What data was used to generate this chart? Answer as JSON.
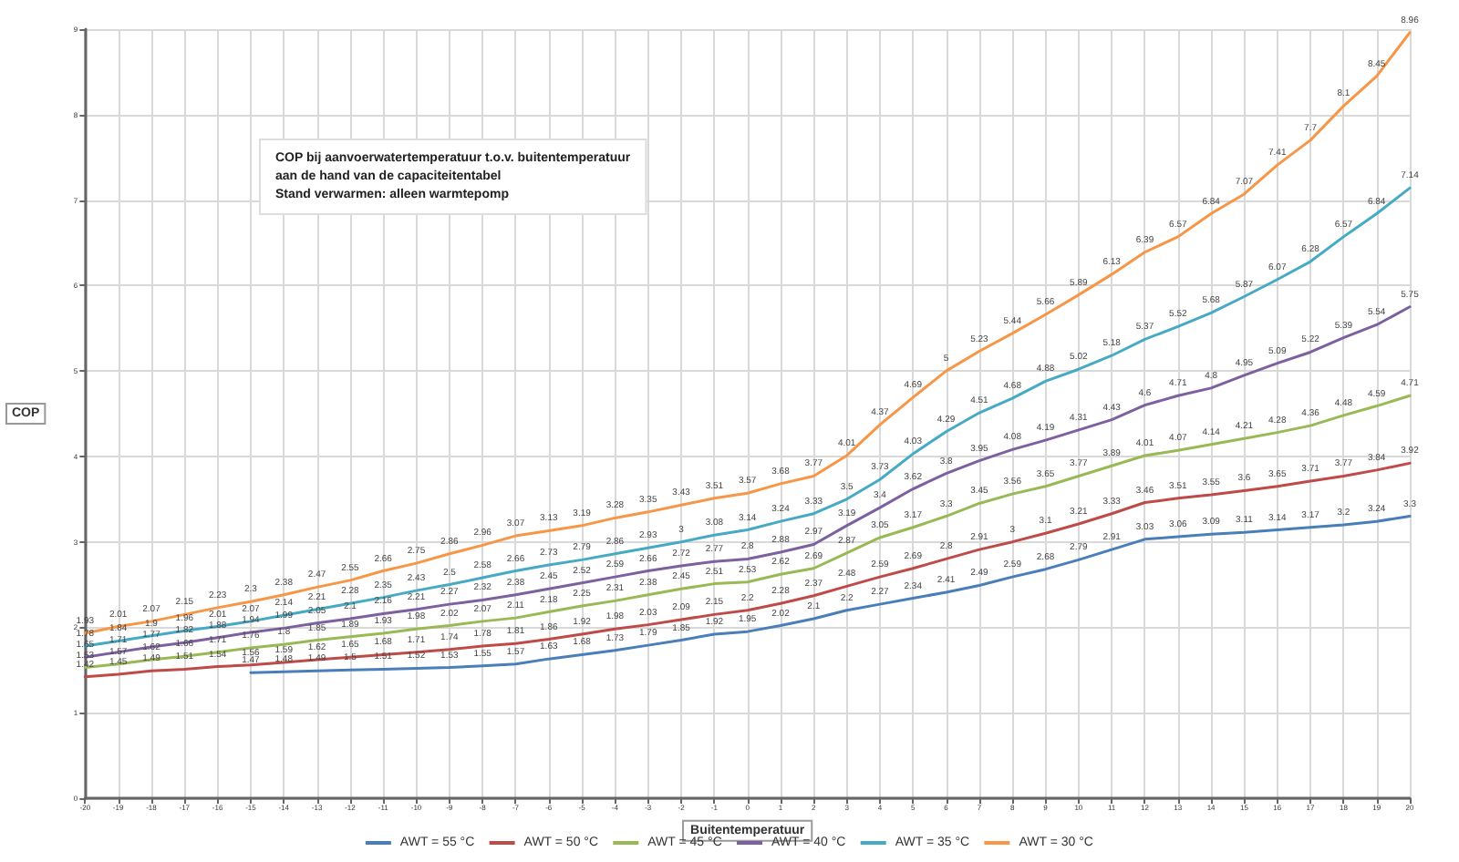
{
  "chart_data": {
    "type": "line",
    "xlabel": "Buitentemperatuur",
    "ylabel": "COP",
    "annotations": [
      "COP bij aanvoerwatertemperatuur t.o.v. buitentemperatuur",
      "aan de hand van de capaciteitentabel",
      "Stand verwarmen: alleen warmtepomp"
    ],
    "x": [
      -20,
      -19,
      -18,
      -17,
      -16,
      -15,
      -14,
      -13,
      -12,
      -11,
      -10,
      -9,
      -8,
      -7,
      -6,
      -5,
      -4,
      -3,
      -2,
      -1,
      0,
      1,
      2,
      3,
      4,
      5,
      6,
      7,
      8,
      9,
      10,
      11,
      12,
      13,
      14,
      15,
      16,
      17,
      18,
      19,
      20
    ],
    "series": [
      {
        "name": "AWT = 55 °C",
        "color": "#4a7ebb",
        "values": [
          null,
          null,
          null,
          null,
          null,
          1.47,
          1.48,
          1.49,
          1.5,
          1.51,
          1.52,
          1.53,
          1.55,
          1.57,
          1.63,
          1.68,
          1.73,
          1.79,
          1.85,
          1.92,
          1.95,
          2.02,
          2.1,
          2.2,
          2.27,
          2.34,
          2.41,
          2.49,
          2.59,
          2.68,
          2.79,
          2.91,
          3.03,
          3.06,
          3.09,
          3.11,
          3.14,
          3.17,
          3.2,
          3.24,
          3.3
        ]
      },
      {
        "name": "AWT = 50 °C",
        "color": "#be4b48",
        "values": [
          1.42,
          1.45,
          1.49,
          1.51,
          1.54,
          1.56,
          1.59,
          1.62,
          1.65,
          1.68,
          1.71,
          1.74,
          1.78,
          1.81,
          1.86,
          1.92,
          1.98,
          2.03,
          2.09,
          2.15,
          2.2,
          2.28,
          2.37,
          2.48,
          2.59,
          2.69,
          2.8,
          2.91,
          3.0,
          3.1,
          3.21,
          3.33,
          3.46,
          3.51,
          3.55,
          3.6,
          3.65,
          3.71,
          3.77,
          3.84,
          3.92
        ]
      },
      {
        "name": "AWT = 45 °C",
        "color": "#98b954",
        "values": [
          1.53,
          1.57,
          1.62,
          1.66,
          1.71,
          1.76,
          1.8,
          1.85,
          1.89,
          1.93,
          1.98,
          2.02,
          2.07,
          2.11,
          2.18,
          2.25,
          2.31,
          2.38,
          2.45,
          2.51,
          2.53,
          2.62,
          2.69,
          2.87,
          3.05,
          3.17,
          3.3,
          3.45,
          3.56,
          3.65,
          3.77,
          3.89,
          4.01,
          4.07,
          4.14,
          4.21,
          4.28,
          4.36,
          4.48,
          4.59,
          4.71
        ]
      },
      {
        "name": "AWT = 40 °C",
        "color": "#7d60a0",
        "values": [
          1.65,
          1.71,
          1.77,
          1.82,
          1.88,
          1.94,
          1.99,
          2.05,
          2.1,
          2.16,
          2.21,
          2.27,
          2.32,
          2.38,
          2.45,
          2.52,
          2.59,
          2.66,
          2.72,
          2.77,
          2.8,
          2.88,
          2.97,
          3.19,
          3.4,
          3.62,
          3.8,
          3.95,
          4.08,
          4.19,
          4.31,
          4.43,
          4.6,
          4.71,
          4.8,
          4.95,
          5.09,
          5.22,
          5.39,
          5.54,
          5.75
        ]
      },
      {
        "name": "AWT = 35 °C",
        "color": "#46aac5",
        "values": [
          1.78,
          1.84,
          1.9,
          1.96,
          2.01,
          2.07,
          2.14,
          2.21,
          2.28,
          2.35,
          2.43,
          2.5,
          2.58,
          2.66,
          2.73,
          2.79,
          2.86,
          2.93,
          3.0,
          3.08,
          3.14,
          3.24,
          3.33,
          3.5,
          3.73,
          4.03,
          4.29,
          4.51,
          4.68,
          4.88,
          5.02,
          5.18,
          5.37,
          5.52,
          5.68,
          5.87,
          6.07,
          6.28,
          6.57,
          6.84,
          7.14
        ]
      },
      {
        "name": "AWT = 30 °C",
        "color": "#f79646",
        "values": [
          1.93,
          2.01,
          2.07,
          2.15,
          2.23,
          2.3,
          2.38,
          2.47,
          2.55,
          2.66,
          2.75,
          2.86,
          2.96,
          3.07,
          3.13,
          3.19,
          3.28,
          3.35,
          3.43,
          3.51,
          3.57,
          3.68,
          3.77,
          4.01,
          4.37,
          4.69,
          5.0,
          5.23,
          5.44,
          5.66,
          5.89,
          6.13,
          6.39,
          6.57,
          6.84,
          7.07,
          7.41,
          7.7,
          8.1,
          8.45,
          8.96
        ]
      }
    ],
    "xlim": [
      -20,
      20
    ],
    "xticks": [
      -20,
      -19,
      -18,
      -17,
      -16,
      -15,
      -14,
      -13,
      -12,
      -11,
      -10,
      -9,
      -8,
      -7,
      -6,
      -5,
      -4,
      -3,
      -2,
      -1,
      0,
      1,
      2,
      3,
      4,
      5,
      6,
      7,
      8,
      9,
      10,
      11,
      12,
      13,
      14,
      15,
      16,
      17,
      18,
      19,
      20
    ],
    "ylim": [
      0,
      9
    ],
    "yticks": [
      0,
      1,
      2,
      3,
      4,
      5,
      6,
      7,
      8,
      9
    ],
    "grid": true,
    "legend": "bottom",
    "marker": "none",
    "line_style": "solid",
    "data_labels": true
  }
}
